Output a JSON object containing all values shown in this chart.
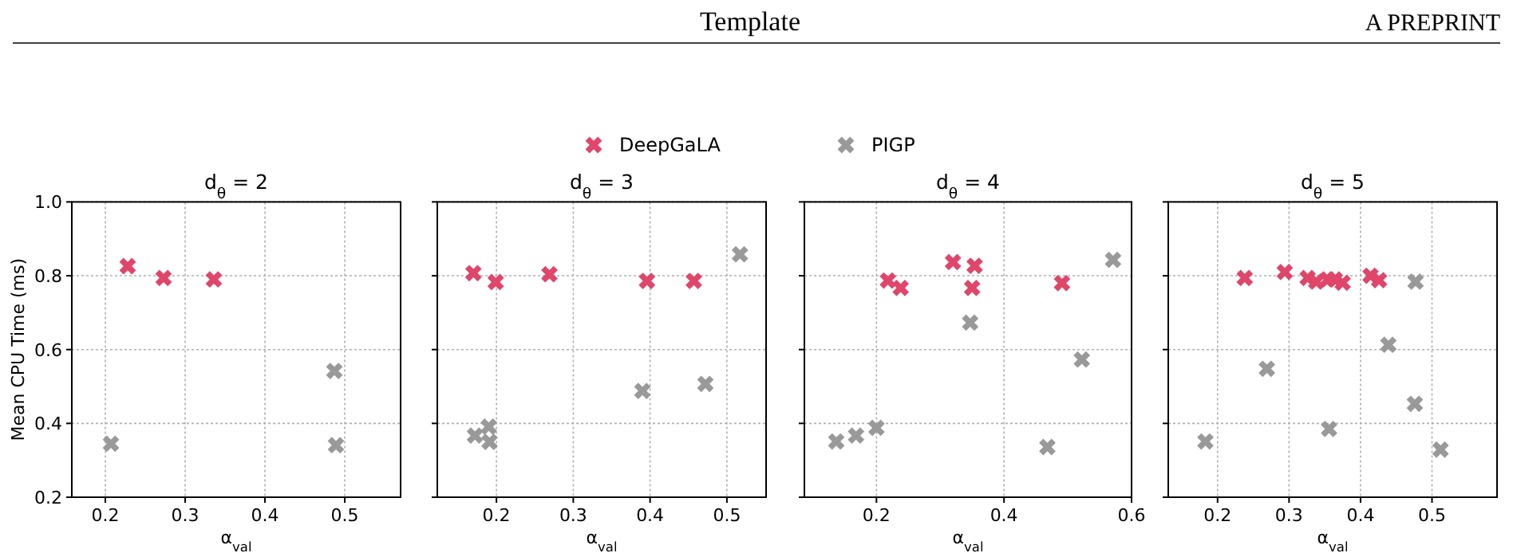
{
  "chart_data": [
    {
      "type": "scatter",
      "title": "d$_{θ}$ = 2",
      "xlabel": "α$_{val}$",
      "ylabel": "Mean CPU Time (ms)",
      "xlim": [
        0.158,
        0.57
      ],
      "xticks": [
        0.2,
        0.3,
        0.4,
        0.5
      ],
      "ylim": [
        0.2,
        1.0
      ],
      "yticks": [
        {
          "value": 0.2,
          "label": "0.2"
        },
        {
          "value": 0.4,
          "label": "0.4"
        },
        {
          "value": 0.6,
          "label": "0.6"
        },
        {
          "value": 0.8,
          "label": "0.8"
        },
        {
          "value": 1.0,
          "label": "1.0"
        }
      ],
      "grid": true,
      "marker": "cross",
      "legend": "top",
      "annotations": [
        "Template",
        "A PREPRINT"
      ],
      "series": [
        {
          "name": "DeepGaLA",
          "color": "#e0456a",
          "x": [
            0.228,
            0.273,
            0.336
          ],
          "values": [
            0.826,
            0.794,
            0.79
          ]
        },
        {
          "name": "PIGP",
          "color": "#999999",
          "x": [
            0.207,
            0.487,
            0.489
          ],
          "values": [
            0.345,
            0.542,
            0.341
          ]
        }
      ]
    },
    {
      "type": "scatter",
      "title": "d$_{θ}$ = 3",
      "xlabel": "α$_{val}$",
      "xlim": [
        0.123,
        0.551
      ],
      "xticks": [
        0.2,
        0.3,
        0.4,
        0.5
      ],
      "ylim": [
        0.2,
        1.0
      ],
      "yticks": [
        {
          "value": 0.2,
          "label": null
        },
        {
          "value": 0.4,
          "label": null
        },
        {
          "value": 0.6,
          "label": null
        },
        {
          "value": 0.8,
          "label": null
        },
        {
          "value": 1.0,
          "label": null
        }
      ],
      "tick_labels": "x",
      "grid": true,
      "marker": "cross",
      "series": [
        {
          "color": "#e0456a",
          "x": [
            0.17,
            0.199,
            0.269,
            0.396,
            0.457
          ],
          "values": [
            0.807,
            0.783,
            0.804,
            0.786,
            0.786
          ]
        },
        {
          "color": "#999999",
          "x": [
            0.517,
            0.39,
            0.472,
            0.172,
            0.19,
            0.191
          ],
          "values": [
            0.858,
            0.488,
            0.507,
            0.367,
            0.391,
            0.35
          ]
        }
      ]
    },
    {
      "type": "scatter",
      "title": "d$_{θ}$ = 4",
      "xlabel": "α$_{val}$",
      "xlim": [
        0.087,
        0.6
      ],
      "xticks": [
        0.2,
        0.4,
        0.6
      ],
      "ylim": [
        0.2,
        1.0
      ],
      "yticks": [
        {
          "value": 0.2,
          "label": null
        },
        {
          "value": 0.4,
          "label": null
        },
        {
          "value": 0.6,
          "label": null
        },
        {
          "value": 0.8,
          "label": null
        },
        {
          "value": 1.0,
          "label": null
        }
      ],
      "tick_labels": "x",
      "grid": true,
      "marker": "cross",
      "series": [
        {
          "color": "#e0456a",
          "x": [
            0.218,
            0.238,
            0.32,
            0.354,
            0.35,
            0.491
          ],
          "values": [
            0.787,
            0.767,
            0.837,
            0.827,
            0.767,
            0.78
          ]
        },
        {
          "color": "#999999",
          "x": [
            0.571,
            0.347,
            0.522,
            0.468,
            0.137,
            0.168,
            0.2
          ],
          "values": [
            0.843,
            0.673,
            0.573,
            0.336,
            0.351,
            0.367,
            0.388
          ]
        }
      ]
    },
    {
      "type": "scatter",
      "title": "d$_{θ}$ = 5",
      "xlabel": "α$_{val}$",
      "xlim": [
        0.131,
        0.591
      ],
      "xticks": [
        0.2,
        0.3,
        0.4,
        0.5
      ],
      "ylim": [
        0.2,
        1.0
      ],
      "yticks": [
        {
          "value": 0.2,
          "label": null
        },
        {
          "value": 0.4,
          "label": null
        },
        {
          "value": 0.6,
          "label": null
        },
        {
          "value": 0.8,
          "label": null
        },
        {
          "value": 1.0,
          "label": null
        }
      ],
      "tick_labels": "x",
      "grid": true,
      "marker": "cross",
      "series": [
        {
          "color": "#e0456a",
          "x": [
            0.238,
            0.294,
            0.326,
            0.338,
            0.354,
            0.364,
            0.375,
            0.414,
            0.426
          ],
          "values": [
            0.794,
            0.81,
            0.794,
            0.784,
            0.79,
            0.79,
            0.781,
            0.8,
            0.788
          ]
        },
        {
          "color": "#999999",
          "x": [
            0.477,
            0.439,
            0.269,
            0.476,
            0.183,
            0.356,
            0.512
          ],
          "values": [
            0.784,
            0.613,
            0.548,
            0.453,
            0.351,
            0.385,
            0.329
          ]
        }
      ]
    }
  ]
}
